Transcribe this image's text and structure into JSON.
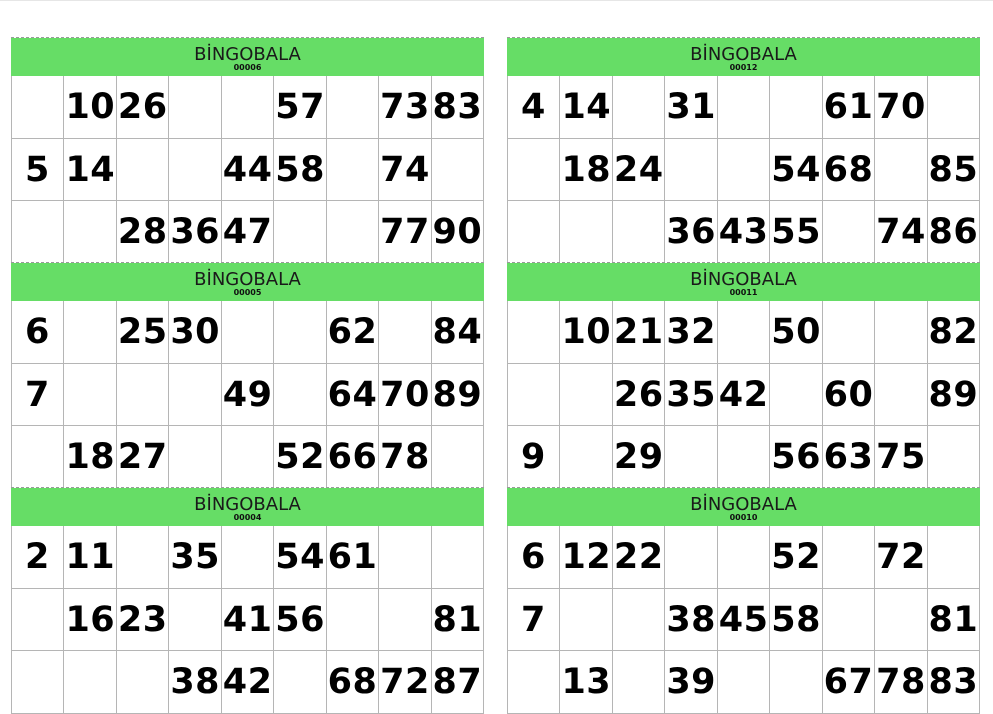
{
  "cards": [
    {
      "title": "BİNGOBALA",
      "serial": "00006",
      "rows": [
        [
          "",
          "10",
          "26",
          "",
          "",
          "57",
          "",
          "73",
          "83"
        ],
        [
          "5",
          "14",
          "",
          "",
          "44",
          "58",
          "",
          "74",
          ""
        ],
        [
          "",
          "",
          "28",
          "36",
          "47",
          "",
          "",
          "77",
          "90"
        ]
      ]
    },
    {
      "title": "BİNGOBALA",
      "serial": "00012",
      "rows": [
        [
          "4",
          "14",
          "",
          "31",
          "",
          "",
          "61",
          "70",
          ""
        ],
        [
          "",
          "18",
          "24",
          "",
          "",
          "54",
          "68",
          "",
          "85"
        ],
        [
          "",
          "",
          "",
          "36",
          "43",
          "55",
          "",
          "74",
          "86"
        ]
      ]
    },
    {
      "title": "BİNGOBALA",
      "serial": "00005",
      "rows": [
        [
          "6",
          "",
          "25",
          "30",
          "",
          "",
          "62",
          "",
          "84"
        ],
        [
          "7",
          "",
          "",
          "",
          "49",
          "",
          "64",
          "70",
          "89"
        ],
        [
          "",
          "18",
          "27",
          "",
          "",
          "52",
          "66",
          "78",
          ""
        ]
      ]
    },
    {
      "title": "BİNGOBALA",
      "serial": "00011",
      "rows": [
        [
          "",
          "10",
          "21",
          "32",
          "",
          "50",
          "",
          "",
          "82"
        ],
        [
          "",
          "",
          "26",
          "35",
          "42",
          "",
          "60",
          "",
          "89"
        ],
        [
          "9",
          "",
          "29",
          "",
          "",
          "56",
          "63",
          "75",
          ""
        ]
      ]
    },
    {
      "title": "BİNGOBALA",
      "serial": "00004",
      "rows": [
        [
          "2",
          "11",
          "",
          "35",
          "",
          "54",
          "61",
          "",
          ""
        ],
        [
          "",
          "16",
          "23",
          "",
          "41",
          "56",
          "",
          "",
          "81"
        ],
        [
          "",
          "",
          "",
          "38",
          "42",
          "",
          "68",
          "72",
          "87"
        ]
      ]
    },
    {
      "title": "BİNGOBALA",
      "serial": "00010",
      "rows": [
        [
          "6",
          "12",
          "22",
          "",
          "",
          "52",
          "",
          "72",
          ""
        ],
        [
          "7",
          "",
          "",
          "38",
          "45",
          "58",
          "",
          "",
          "81"
        ],
        [
          "",
          "13",
          "",
          "39",
          "",
          "",
          "67",
          "78",
          "83"
        ]
      ]
    }
  ]
}
